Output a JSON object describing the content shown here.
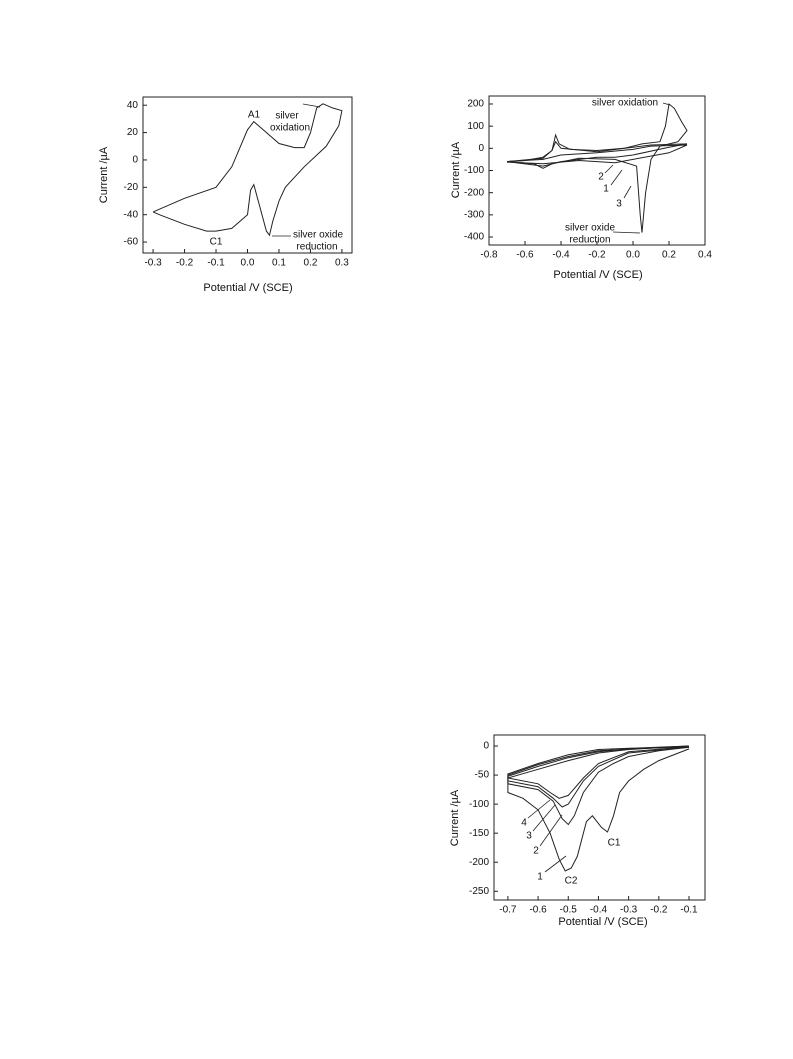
{
  "chart_data": [
    {
      "type": "line",
      "xlabel": "Potential /V (SCE)",
      "ylabel": "Current /µA",
      "xlim": [
        -0.332,
        0.332
      ],
      "ylim": [
        -68,
        46
      ],
      "xticks": [
        -0.3,
        -0.2,
        -0.1,
        {
          "value": 0,
          "label": "0.0"
        },
        0.1,
        0.2,
        0.3
      ],
      "yticks": [
        40,
        20,
        0,
        -20,
        -40,
        -60
      ],
      "series": [
        {
          "color": "#222222",
          "x": [
            -0.3,
            -0.2,
            -0.1,
            -0.05,
            0,
            0.02,
            0.05,
            0.1,
            0.15,
            0.18,
            0.2,
            0.22,
            0.24,
            0.27,
            0.3,
            0.29,
            0.25,
            0.18,
            0.12,
            0.1,
            0.08,
            0.07,
            0.06,
            0.04,
            0.02,
            0.01,
            0,
            -0.05,
            -0.1,
            -0.13,
            -0.2,
            -0.28,
            -0.3
          ],
          "values": [
            -38,
            -28,
            -20,
            -5,
            22,
            28,
            22,
            12,
            9,
            9,
            20,
            38,
            41,
            38,
            36,
            25,
            10,
            -5,
            -20,
            -30,
            -45,
            -55,
            -52,
            -35,
            -18,
            -22,
            -40,
            -50,
            -52,
            -52,
            -47,
            -40,
            -38
          ]
        }
      ],
      "annotations": [
        "silver",
        "oxidation",
        "A1",
        "C1",
        "silver oxide",
        "reduction"
      ]
    },
    {
      "type": "line",
      "xlabel": "Potential /V (SCE)",
      "ylabel": "Current /µA",
      "xlim": [
        -0.8,
        0.4
      ],
      "ylim": [
        -436,
        236
      ],
      "xticks": [
        -0.8,
        -0.6,
        -0.4,
        -0.2,
        {
          "value": 0,
          "label": "0.0"
        },
        0.2,
        0.4
      ],
      "yticks": [
        200,
        100,
        0,
        -100,
        -200,
        -300,
        -400
      ],
      "series": [
        {
          "color": "#222222",
          "x": [
            -0.7,
            -0.6,
            -0.5,
            -0.45,
            -0.43,
            -0.41,
            -0.35,
            -0.2,
            -0.05,
            0.05,
            0.15,
            0.18,
            0.2,
            0.23,
            0.27,
            0.3,
            0.25,
            0.15,
            0.1,
            0.07,
            0.05,
            0.04,
            0.02,
            -0.1,
            -0.3,
            -0.45,
            -0.5,
            -0.55,
            -0.7
          ],
          "values": [
            -60,
            -55,
            -40,
            -10,
            60,
            20,
            -5,
            -10,
            0,
            20,
            30,
            100,
            200,
            180,
            120,
            80,
            30,
            10,
            -50,
            -200,
            -380,
            -300,
            -80,
            -50,
            -45,
            -70,
            -90,
            -70,
            -60
          ]
        },
        {
          "color": "#222222",
          "x": [
            -0.7,
            -0.5,
            -0.45,
            -0.43,
            -0.4,
            -0.2,
            0,
            0.1,
            0.3,
            0.2,
            0,
            -0.1,
            -0.2,
            -0.4,
            -0.5,
            -0.7
          ],
          "values": [
            -60,
            -45,
            -10,
            30,
            0,
            -15,
            5,
            15,
            20,
            5,
            -30,
            -40,
            -40,
            -60,
            -80,
            -60
          ]
        },
        {
          "color": "#222222",
          "x": [
            -0.7,
            -0.5,
            -0.4,
            -0.2,
            0,
            0.1,
            0.3,
            0.2,
            0,
            -0.1,
            -0.3,
            -0.5,
            -0.7
          ],
          "values": [
            -60,
            -50,
            -30,
            -20,
            -5,
            10,
            15,
            -20,
            -50,
            -65,
            -55,
            -70,
            -62
          ]
        }
      ],
      "annotations": [
        "silver oxidation",
        "2",
        "1",
        "3",
        "silver oxide",
        "reduction"
      ]
    },
    {
      "type": "line",
      "xlabel": "Potential /V (SCE)",
      "ylabel": "Current /µA",
      "xlim": [
        -0.746,
        -0.047
      ],
      "ylim": [
        -265,
        19
      ],
      "xticks": [
        -0.7,
        -0.6,
        -0.5,
        -0.4,
        -0.3,
        -0.2,
        -0.1
      ],
      "yticks": [
        0,
        -50,
        -100,
        -150,
        -200,
        -250
      ],
      "series": [
        {
          "color": "#222222",
          "x": [
            -0.1,
            -0.2,
            -0.25,
            -0.3,
            -0.33,
            -0.35,
            -0.37,
            -0.39,
            -0.42,
            -0.44,
            -0.47,
            -0.49,
            -0.51,
            -0.53,
            -0.56,
            -0.6,
            -0.65,
            -0.7,
            -0.7,
            -0.6,
            -0.5,
            -0.4,
            -0.3,
            -0.2,
            -0.1
          ],
          "values": [
            -5,
            -25,
            -40,
            -60,
            -80,
            -120,
            -148,
            -140,
            -120,
            -130,
            -190,
            -210,
            -215,
            -195,
            -150,
            -110,
            -90,
            -80,
            -55,
            -40,
            -25,
            -12,
            -6,
            -3,
            -1
          ]
        },
        {
          "color": "#222222",
          "x": [
            -0.1,
            -0.2,
            -0.3,
            -0.35,
            -0.4,
            -0.45,
            -0.48,
            -0.5,
            -0.52,
            -0.55,
            -0.6,
            -0.7,
            -0.7,
            -0.6,
            -0.5,
            -0.4,
            -0.3,
            -0.1
          ],
          "values": [
            -2,
            -8,
            -18,
            -30,
            -45,
            -80,
            -120,
            -135,
            -125,
            -95,
            -75,
            -65,
            -52,
            -35,
            -20,
            -10,
            -5,
            -1
          ]
        },
        {
          "color": "#222222",
          "x": [
            -0.1,
            -0.3,
            -0.4,
            -0.45,
            -0.5,
            -0.52,
            -0.55,
            -0.6,
            -0.7,
            -0.7,
            -0.6,
            -0.5,
            -0.4,
            -0.1
          ],
          "values": [
            -2,
            -12,
            -35,
            -60,
            -100,
            -105,
            -90,
            -70,
            -60,
            -50,
            -32,
            -18,
            -8,
            0
          ]
        },
        {
          "color": "#222222",
          "x": [
            -0.1,
            -0.3,
            -0.4,
            -0.45,
            -0.5,
            -0.53,
            -0.56,
            -0.6,
            -0.7,
            -0.7,
            -0.6,
            -0.5,
            -0.4,
            -0.1
          ],
          "values": [
            -1,
            -10,
            -30,
            -55,
            -85,
            -90,
            -80,
            -65,
            -55,
            -48,
            -30,
            -15,
            -6,
            0
          ]
        }
      ],
      "annotations": [
        "4",
        "3",
        "2",
        "1",
        "C2",
        "C1"
      ]
    }
  ]
}
